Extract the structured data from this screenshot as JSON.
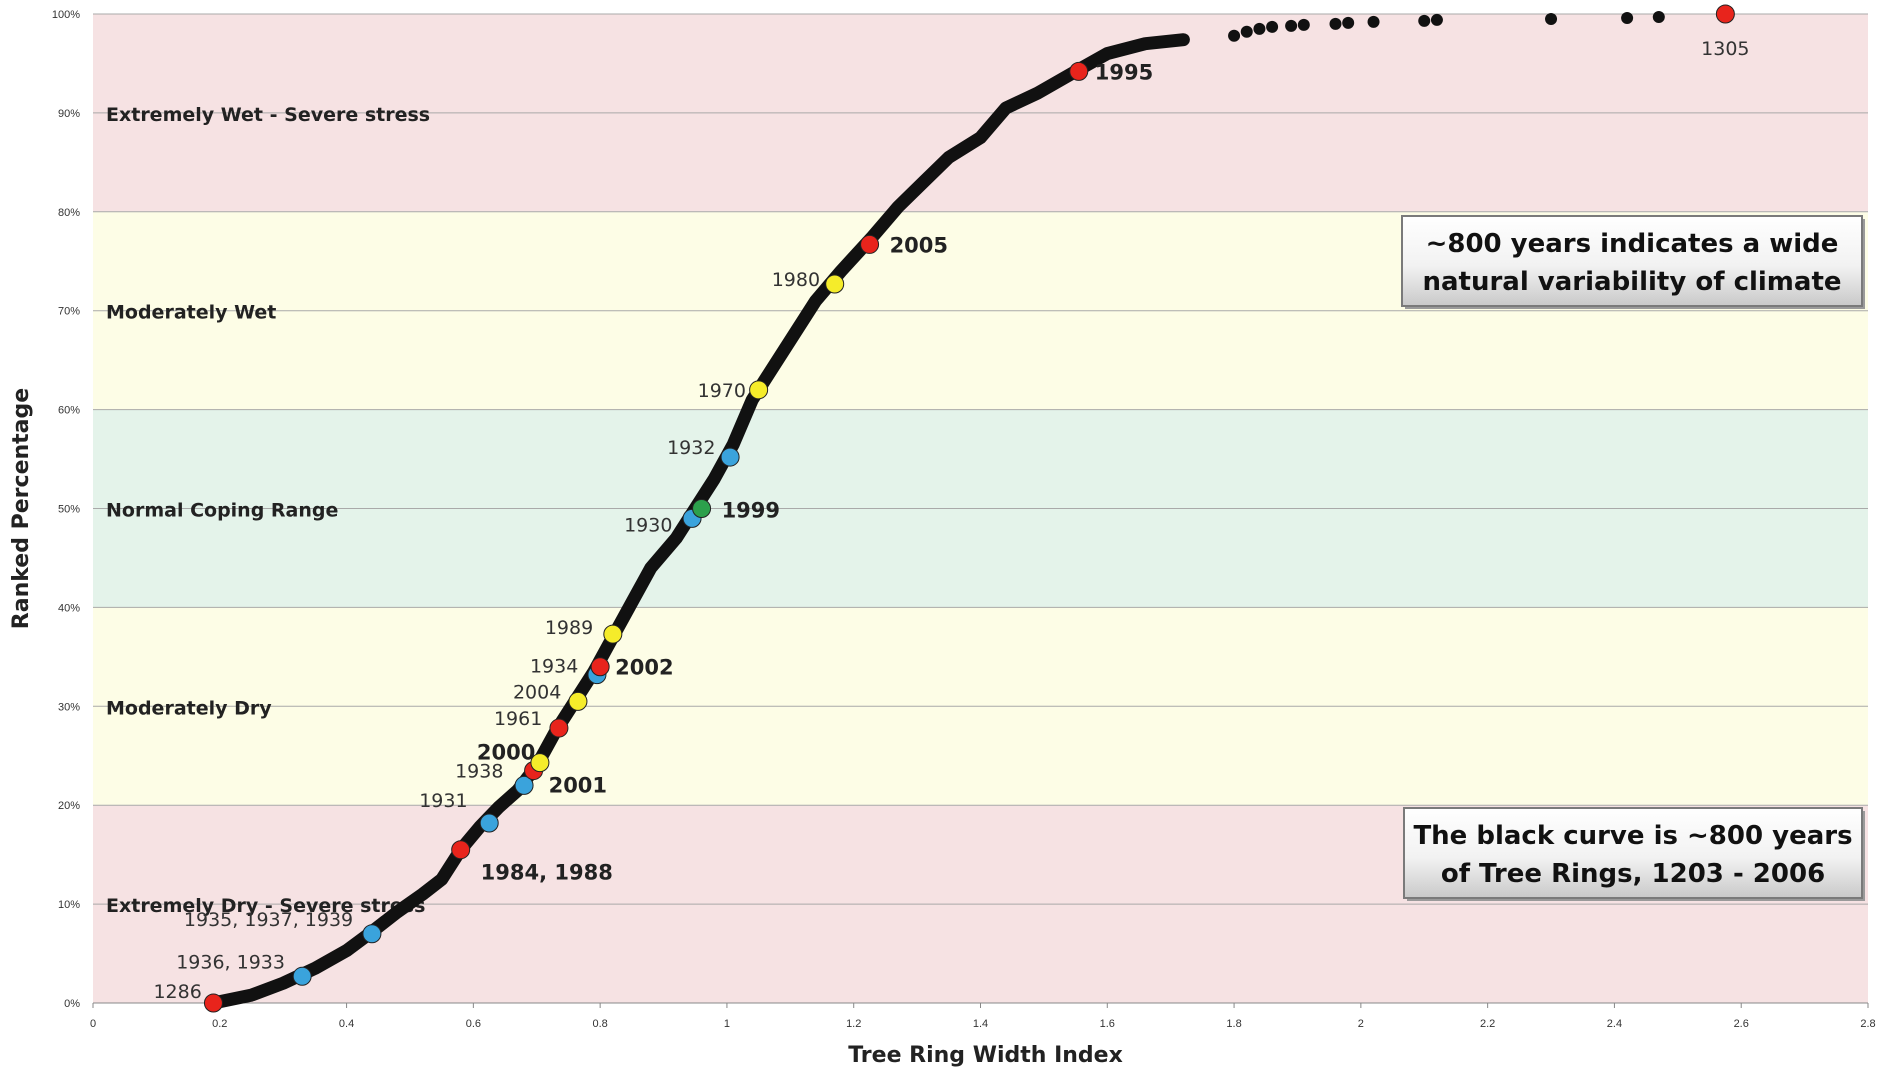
{
  "chart_data": {
    "type": "scatter",
    "title": "",
    "xlabel": "Tree Ring Width Index",
    "ylabel": "Ranked Percentage",
    "xlim": [
      0,
      2.8
    ],
    "ylim": [
      0,
      100
    ],
    "x_ticks": [
      "0",
      "0.2",
      "0.4",
      "0.6",
      "0.8",
      "1",
      "1.2",
      "1.4",
      "1.6",
      "1.8",
      "2",
      "2.2",
      "2.4",
      "2.6",
      "2.8"
    ],
    "y_ticks": [
      "0%",
      "10%",
      "20%",
      "30%",
      "40%",
      "50%",
      "60%",
      "70%",
      "80%",
      "90%",
      "100%"
    ],
    "grid": "horizontal",
    "bands": [
      {
        "label": "Extremely Dry - Severe stress",
        "from": 0,
        "to": 20,
        "color": "#f6e2e3"
      },
      {
        "label": "Moderately Dry",
        "from": 20,
        "to": 40,
        "color": "#fdfde6"
      },
      {
        "label": "Normal Coping Range",
        "from": 40,
        "to": 60,
        "color": "#e4f3ea"
      },
      {
        "label": "Moderately Wet",
        "from": 60,
        "to": 80,
        "color": "#fdfde6"
      },
      {
        "label": "Extremely Wet - Severe stress",
        "from": 80,
        "to": 100,
        "color": "#f6e2e3"
      }
    ],
    "curve": {
      "color": "#111111",
      "points": [
        [
          0.19,
          0
        ],
        [
          0.25,
          0.8
        ],
        [
          0.3,
          2
        ],
        [
          0.35,
          3.5
        ],
        [
          0.4,
          5.3
        ],
        [
          0.44,
          7.2
        ],
        [
          0.48,
          9.2
        ],
        [
          0.52,
          11
        ],
        [
          0.55,
          12.5
        ],
        [
          0.58,
          15.5
        ],
        [
          0.61,
          17.8
        ],
        [
          0.64,
          19.8
        ],
        [
          0.67,
          21.5
        ],
        [
          0.7,
          24
        ],
        [
          0.73,
          27.5
        ],
        [
          0.76,
          30.5
        ],
        [
          0.79,
          33.5
        ],
        [
          0.82,
          37
        ],
        [
          0.85,
          40.5
        ],
        [
          0.88,
          44
        ],
        [
          0.92,
          47
        ],
        [
          0.95,
          50
        ],
        [
          0.98,
          53
        ],
        [
          1.01,
          56.5
        ],
        [
          1.04,
          61
        ],
        [
          1.07,
          64
        ],
        [
          1.1,
          67
        ],
        [
          1.14,
          71
        ],
        [
          1.18,
          74
        ],
        [
          1.23,
          77.5
        ],
        [
          1.27,
          80.5
        ],
        [
          1.31,
          83
        ],
        [
          1.35,
          85.5
        ],
        [
          1.4,
          87.5
        ],
        [
          1.44,
          90.5
        ],
        [
          1.49,
          92
        ],
        [
          1.55,
          94.2
        ],
        [
          1.6,
          96
        ],
        [
          1.66,
          97
        ],
        [
          1.72,
          97.4
        ]
      ]
    },
    "outlier_points": [
      [
        1.8,
        97.8
      ],
      [
        1.82,
        98.2
      ],
      [
        1.84,
        98.5
      ],
      [
        1.86,
        98.7
      ],
      [
        1.89,
        98.8
      ],
      [
        1.91,
        98.9
      ],
      [
        1.96,
        99
      ],
      [
        1.98,
        99.1
      ],
      [
        2.02,
        99.2
      ],
      [
        2.1,
        99.3
      ],
      [
        2.12,
        99.4
      ],
      [
        2.3,
        99.5
      ],
      [
        2.42,
        99.6
      ],
      [
        2.47,
        99.7
      ]
    ],
    "highlighted_points": [
      {
        "label": "1286",
        "x": 0.19,
        "y": 0.0,
        "color": "#e8241c",
        "bold": false
      },
      {
        "label": "1936, 1933",
        "x": 0.33,
        "y": 2.7,
        "color": "#3aa3dc",
        "bold": false
      },
      {
        "label": "1935, 1937, 1939",
        "x": 0.44,
        "y": 7.0,
        "color": "#3aa3dc",
        "bold": false
      },
      {
        "label": "1984, 1988",
        "x": 0.58,
        "y": 15.5,
        "color": "#e8241c",
        "bold": true
      },
      {
        "label": "1931",
        "x": 0.625,
        "y": 18.2,
        "color": "#3aa3dc",
        "bold": false
      },
      {
        "label": "1938",
        "x": 0.68,
        "y": 22.0,
        "color": "#3aa3dc",
        "bold": false
      },
      {
        "label": "2001",
        "x": 0.695,
        "y": 23.5,
        "color": "#e8241c",
        "bold": true
      },
      {
        "label": "2000",
        "x": 0.705,
        "y": 24.3,
        "color": "#f5ec2a",
        "bold": true
      },
      {
        "label": "1961",
        "x": 0.735,
        "y": 27.8,
        "color": "#e8241c",
        "bold": false
      },
      {
        "label": "2004",
        "x": 0.765,
        "y": 30.5,
        "color": "#f5ec2a",
        "bold": false
      },
      {
        "label": "1934",
        "x": 0.795,
        "y": 33.2,
        "color": "#3aa3dc",
        "bold": false
      },
      {
        "label": "2002",
        "x": 0.8,
        "y": 34.0,
        "color": "#e8241c",
        "bold": true
      },
      {
        "label": "1989",
        "x": 0.82,
        "y": 37.3,
        "color": "#f5ec2a",
        "bold": false
      },
      {
        "label": "1930",
        "x": 0.945,
        "y": 49.0,
        "color": "#3aa3dc",
        "bold": false
      },
      {
        "label": "1999",
        "x": 0.96,
        "y": 50.0,
        "color": "#2ca04c",
        "bold": true
      },
      {
        "label": "1932",
        "x": 1.005,
        "y": 55.2,
        "color": "#3aa3dc",
        "bold": false
      },
      {
        "label": "1970",
        "x": 1.05,
        "y": 62.0,
        "color": "#f5ec2a",
        "bold": false
      },
      {
        "label": "1980",
        "x": 1.17,
        "y": 72.7,
        "color": "#f5ec2a",
        "bold": false
      },
      {
        "label": "2005",
        "x": 1.225,
        "y": 76.7,
        "color": "#e8241c",
        "bold": true
      },
      {
        "label": "1995",
        "x": 1.555,
        "y": 94.2,
        "color": "#e8241c",
        "bold": true
      },
      {
        "label": "1305",
        "x": 2.575,
        "y": 100.0,
        "color": "#e8241c",
        "bold": false
      }
    ],
    "annotations": [
      {
        "lines": [
          "~800 years indicates a wide",
          "natural variability of climate"
        ]
      },
      {
        "lines": [
          "The black curve is ~800 years",
          "of Tree Rings, 1203 - 2006"
        ]
      }
    ]
  }
}
